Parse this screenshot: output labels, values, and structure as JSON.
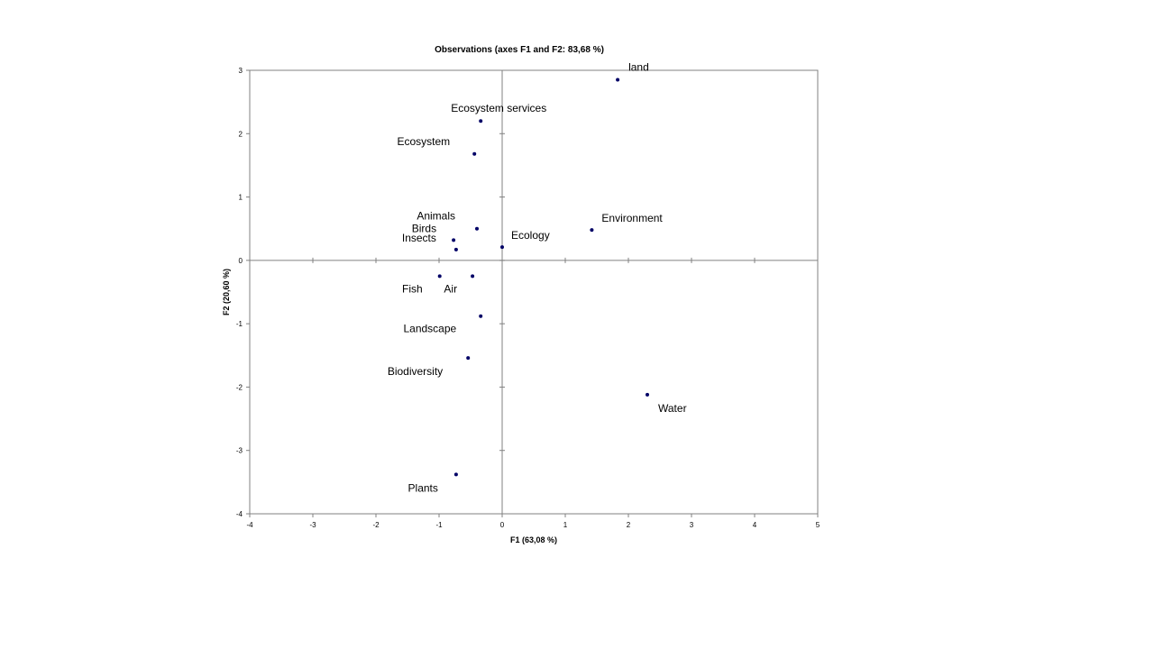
{
  "chart_data": {
    "type": "scatter",
    "title": "Observations (axes F1 and F2: 83,68 %)",
    "xlabel": "F1 (63,08 %)",
    "ylabel": "F2 (20,60 %)",
    "xlim": [
      -4,
      5
    ],
    "ylim": [
      -4,
      3
    ],
    "x_ticks": [
      "-4",
      "-3",
      "-2",
      "-1",
      "0",
      "1",
      "2",
      "3",
      "4",
      "5"
    ],
    "y_ticks": [
      "-4",
      "-3",
      "-2",
      "-1",
      "0",
      "1",
      "2",
      "3"
    ],
    "grid": false,
    "point_color": "#000066",
    "points": [
      {
        "label": "land",
        "x": 1.83,
        "y": 2.85
      },
      {
        "label": "Ecosystem services",
        "x": -0.34,
        "y": 2.2
      },
      {
        "label": "Ecosystem",
        "x": -0.44,
        "y": 1.68
      },
      {
        "label": "Animals",
        "x": -0.4,
        "y": 0.5
      },
      {
        "label": "Birds",
        "x": -0.77,
        "y": 0.32
      },
      {
        "label": "Insects",
        "x": -0.73,
        "y": 0.17
      },
      {
        "label": "Ecology",
        "x": 0.0,
        "y": 0.21
      },
      {
        "label": "Environment",
        "x": 1.42,
        "y": 0.48
      },
      {
        "label": "Fish",
        "x": -0.99,
        "y": -0.25
      },
      {
        "label": "Air",
        "x": -0.47,
        "y": -0.25
      },
      {
        "label": "Landscape",
        "x": -0.34,
        "y": -0.88
      },
      {
        "label": "Biodiversity",
        "x": -0.54,
        "y": -1.54
      },
      {
        "label": "Water",
        "x": 2.3,
        "y": -2.12
      },
      {
        "label": "Plants",
        "x": -0.73,
        "y": -3.38
      }
    ]
  }
}
